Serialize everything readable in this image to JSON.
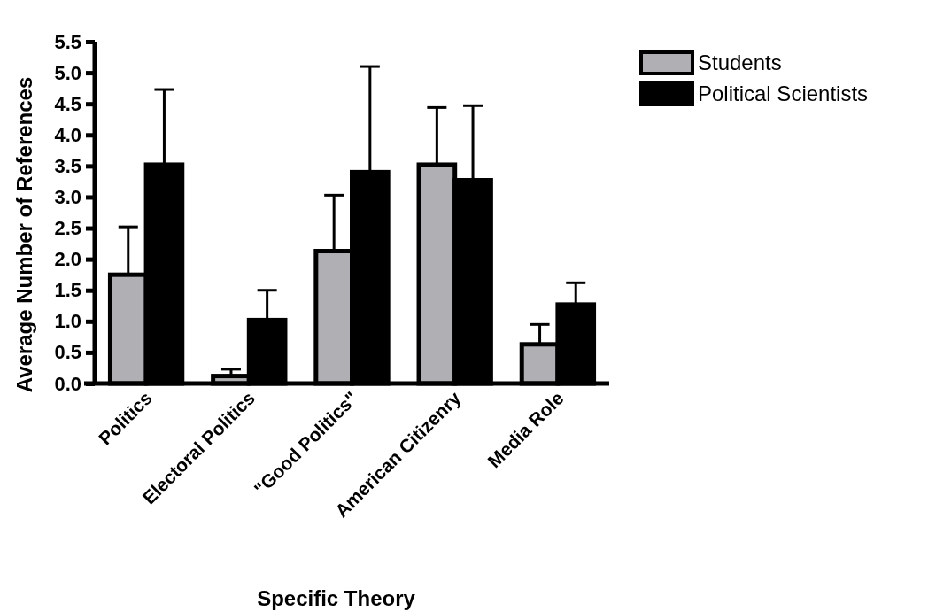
{
  "chart_data": {
    "type": "bar",
    "xlabel": "Specific Theory",
    "ylabel": "Average Number of References",
    "categories": [
      "Politics",
      "Electoral Politics",
      "\"Good Politics\"",
      "American Citizenry",
      "Media Role"
    ],
    "series": [
      {
        "name": "Students",
        "color": "#b0b0b4",
        "values": [
          1.75,
          0.12,
          2.13,
          3.52,
          0.63
        ],
        "errors": [
          [
            1.75,
            2.52
          ],
          [
            0.12,
            0.23
          ],
          [
            2.13,
            3.03
          ],
          [
            3.52,
            4.44
          ],
          [
            0.63,
            0.95
          ]
        ]
      },
      {
        "name": "Political Scientists",
        "color": "#000000",
        "values": [
          3.52,
          1.02,
          3.4,
          3.27,
          1.27
        ],
        "errors": [
          [
            3.52,
            4.73
          ],
          [
            1.02,
            1.5
          ],
          [
            3.4,
            5.1
          ],
          [
            3.27,
            4.47
          ],
          [
            1.27,
            1.62
          ]
        ]
      }
    ],
    "ylim": [
      0,
      5.5
    ],
    "yticks": [
      {
        "value": 0,
        "label": "0.0"
      },
      {
        "value": 0.5,
        "label": "0.5"
      },
      {
        "value": 1,
        "label": "1.0"
      },
      {
        "value": 1.5,
        "label": "1.5"
      },
      {
        "value": 2,
        "label": "2.0"
      },
      {
        "value": 2.5,
        "label": "2.5"
      },
      {
        "value": 3,
        "label": "3.0"
      },
      {
        "value": 3.5,
        "label": "3.5"
      },
      {
        "value": 4,
        "label": "4.0"
      },
      {
        "value": 4.5,
        "label": "4.5"
      },
      {
        "value": 5,
        "label": "5.0"
      },
      {
        "value": 5.5,
        "label": "5.5"
      }
    ],
    "legend": "top right",
    "grid": false
  }
}
